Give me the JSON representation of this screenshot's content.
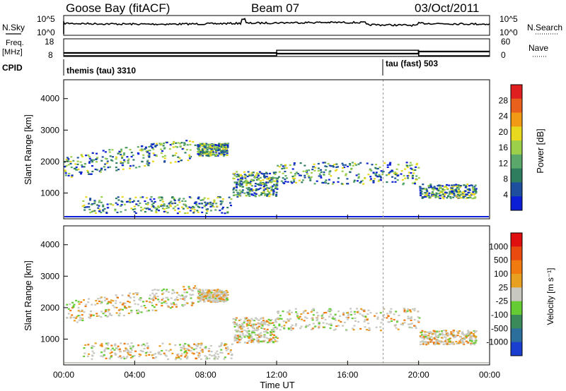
{
  "header": {
    "station": "Goose Bay (fitACF)",
    "beam": "Beam 07",
    "date": "03/Oct/2011"
  },
  "top_panels": {
    "nsky_label": "N.Sky",
    "nsky_ticks": [
      "10^5",
      "10^0"
    ],
    "nsearch_label": "N.Search",
    "nsearch_ticks": [
      "10^5",
      "10^0"
    ],
    "freq_label": "Freq.",
    "freq_unit": "[MHz]",
    "freq_ticks": [
      "18",
      "8"
    ],
    "nave_label": "Nave",
    "nave_ticks": [
      "60",
      "0"
    ],
    "cpid_label": "CPID",
    "cpid_segments": [
      {
        "label": "themis (tau) 3310",
        "start": "00:00",
        "end": "18:00"
      },
      {
        "label": "tau (fast) 503",
        "start": "18:00",
        "end": "24:00"
      }
    ],
    "freq_steps": [
      {
        "start": 0,
        "end": 12,
        "mhz": 8.5
      },
      {
        "start": 12,
        "end": 20,
        "mhz": 12
      },
      {
        "start": 20,
        "end": 24,
        "mhz": 8.5
      }
    ]
  },
  "chart_data": [
    {
      "type": "heatmap",
      "title": "Power",
      "xlabel": "",
      "ylabel": "Slant Range [km]",
      "xlim": [
        0,
        24
      ],
      "ylim": [
        180,
        4600
      ],
      "y_ticks": [
        1000,
        2000,
        3000,
        4000
      ],
      "x_tick_labels": [
        "00:00",
        "04:00",
        "08:00",
        "12:00",
        "16:00",
        "20:00",
        "00:00"
      ],
      "colorbar": {
        "label": "Power [dB]",
        "ticks": [
          4,
          8,
          12,
          16,
          20,
          24,
          28
        ],
        "colors": [
          "#0b1fd6",
          "#1d4f9e",
          "#2e7d5e",
          "#5aa86a",
          "#9ccf4a",
          "#e8d81e",
          "#f29a16",
          "#e8601c",
          "#e02020"
        ]
      }
    },
    {
      "type": "heatmap",
      "title": "Velocity",
      "xlabel": "Time UT",
      "ylabel": "Slant Range [km]",
      "xlim": [
        0,
        24
      ],
      "ylim": [
        180,
        4600
      ],
      "y_ticks": [
        1000,
        2000,
        3000,
        4000
      ],
      "x_tick_labels": [
        "00:00",
        "04:00",
        "08:00",
        "12:00",
        "16:00",
        "20:00",
        "00:00"
      ],
      "colorbar": {
        "label": "Velocity [m s⁻¹]",
        "ticks": [
          "1000",
          "500",
          "100",
          "25",
          "-25",
          "-100",
          "-500",
          "-1000"
        ],
        "colors": [
          "#1a3fd0",
          "#2c6e9c",
          "#3b8a5a",
          "#66cc33",
          "#c8c8c0",
          "#e8a020",
          "#f07a10",
          "#e84a10",
          "#e01010"
        ]
      }
    }
  ]
}
